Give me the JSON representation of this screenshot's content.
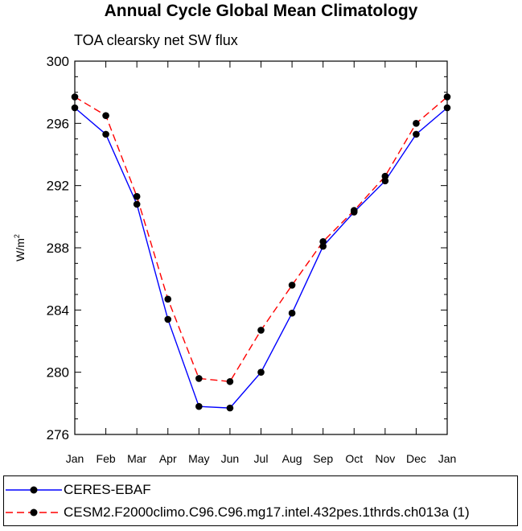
{
  "title": "Annual Cycle Global Mean Climatology",
  "subtitle": "TOA clearsky net SW flux",
  "chart_data": {
    "type": "line",
    "title": "Annual Cycle Global Mean Climatology",
    "subtitle": "TOA clearsky net SW flux",
    "xlabel": "",
    "ylabel": "W/m",
    "ylabel_superscript": "2",
    "categories": [
      "Jan",
      "Feb",
      "Mar",
      "Apr",
      "May",
      "Jun",
      "Jul",
      "Aug",
      "Sep",
      "Oct",
      "Nov",
      "Dec",
      "Jan"
    ],
    "ylim": [
      276,
      300
    ],
    "yticks": [
      276,
      280,
      284,
      288,
      292,
      296,
      300
    ],
    "grid": false,
    "legend_position": "bottom",
    "series": [
      {
        "name": "CERES-EBAF",
        "color": "#0000ff",
        "style": "solid",
        "values": [
          297.0,
          295.3,
          290.8,
          283.4,
          277.8,
          277.7,
          280.0,
          283.8,
          288.1,
          290.3,
          292.3,
          295.3,
          297.0
        ]
      },
      {
        "name": "CESM2.F2000climo.C96.C96.mg17.intel.432pes.1thrds.ch013a (1)",
        "color": "#ff0000",
        "style": "dashed",
        "values": [
          297.7,
          296.5,
          291.3,
          284.7,
          279.6,
          279.4,
          282.7,
          285.6,
          288.4,
          290.4,
          292.6,
          296.0,
          297.7
        ]
      }
    ]
  }
}
